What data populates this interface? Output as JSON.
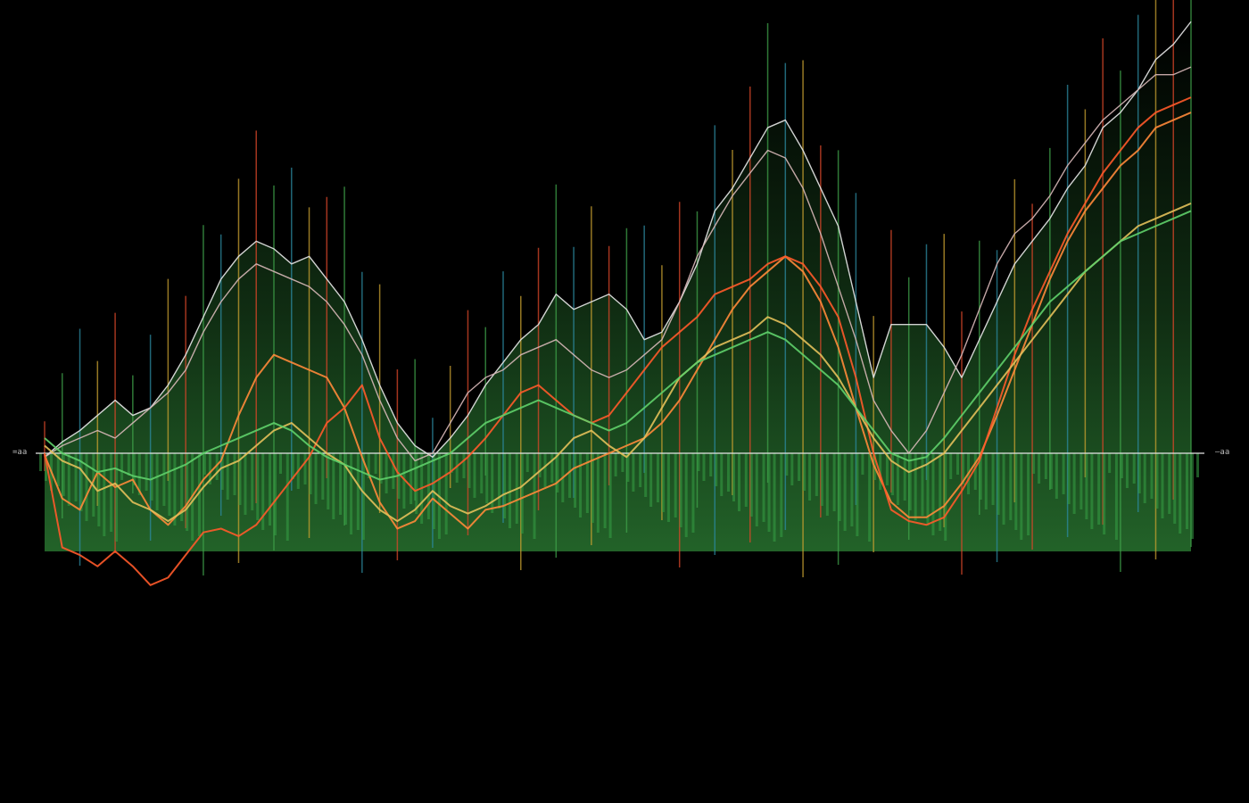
{
  "chart_data": {
    "type": "line",
    "grid": false,
    "legend": "none",
    "background": "#000000",
    "baseline_labels": {
      "left": "=aa",
      "right": "—aa"
    },
    "x": [
      0,
      1,
      2,
      3,
      4,
      5,
      6,
      7,
      8,
      9,
      10,
      11,
      12,
      13,
      14,
      15,
      16,
      17,
      18,
      19,
      20,
      21,
      22,
      23,
      24,
      25,
      26,
      27,
      28,
      29,
      30,
      31,
      32,
      33,
      34,
      35,
      36,
      37,
      38,
      39,
      40,
      41,
      42,
      43,
      44,
      45,
      46,
      47,
      48,
      49,
      50,
      51,
      52,
      53,
      54,
      55,
      56,
      57,
      58,
      59,
      60,
      61,
      62,
      63,
      64,
      65
    ],
    "ylim": [
      -100,
      115
    ],
    "series": [
      {
        "color": "#e8e8e8",
        "values": [
          -2,
          3,
          6,
          10,
          14,
          10,
          12,
          18,
          26,
          36,
          46,
          52,
          56,
          54,
          50,
          52,
          46,
          40,
          30,
          18,
          8,
          2,
          -2,
          4,
          10,
          18,
          24,
          30,
          34,
          42,
          38,
          40,
          42,
          38,
          30,
          32,
          40,
          50,
          64,
          70,
          78,
          86,
          88,
          80,
          70,
          60,
          40,
          20,
          34,
          34,
          34,
          28,
          20,
          30,
          40,
          50,
          56,
          62,
          70,
          76,
          86,
          90,
          96,
          104,
          108,
          114
        ]
      },
      {
        "color": "#d8b8b8",
        "values": [
          -2,
          2,
          4,
          6,
          4,
          8,
          12,
          16,
          22,
          32,
          40,
          46,
          50,
          48,
          46,
          44,
          40,
          34,
          26,
          14,
          4,
          -4,
          0,
          8,
          16,
          20,
          22,
          26,
          28,
          30,
          26,
          22,
          20,
          22,
          26,
          30,
          40,
          52,
          60,
          68,
          74,
          80,
          78,
          70,
          58,
          44,
          30,
          14,
          6,
          0,
          6,
          16,
          26,
          38,
          50,
          58,
          62,
          68,
          76,
          82,
          88,
          92,
          96,
          100,
          100,
          102
        ]
      },
      {
        "color": "#ff8a3a",
        "values": [
          -1,
          -24,
          -30,
          -10,
          -18,
          -14,
          -30,
          -38,
          -28,
          -14,
          -4,
          10,
          20,
          26,
          24,
          22,
          20,
          12,
          -2,
          -26,
          -40,
          -36,
          -24,
          -32,
          -40,
          -30,
          -28,
          -24,
          -20,
          -16,
          -8,
          -4,
          0,
          2,
          4,
          8,
          14,
          22,
          30,
          38,
          44,
          48,
          52,
          48,
          40,
          28,
          12,
          -6,
          -26,
          -34,
          -34,
          -28,
          -16,
          -2,
          10,
          22,
          34,
          46,
          56,
          64,
          70,
          76,
          80,
          86,
          88,
          90
        ]
      },
      {
        "color": "#ff5a2a",
        "values": [
          0,
          -50,
          -54,
          -60,
          -52,
          -60,
          -70,
          -66,
          -54,
          -42,
          -40,
          -44,
          -38,
          -26,
          -14,
          -2,
          8,
          12,
          18,
          4,
          -10,
          -20,
          -16,
          -10,
          -2,
          4,
          10,
          16,
          18,
          14,
          10,
          8,
          10,
          16,
          22,
          28,
          32,
          36,
          42,
          44,
          46,
          50,
          52,
          50,
          44,
          36,
          20,
          0,
          -30,
          -36,
          -38,
          -34,
          -20,
          -4,
          12,
          26,
          38,
          48,
          58,
          66,
          74,
          80,
          86,
          90,
          92,
          94
        ]
      },
      {
        "color": "#e3c05a",
        "values": [
          2,
          -4,
          -8,
          -20,
          -16,
          -26,
          -30,
          -36,
          -30,
          -18,
          -8,
          -4,
          2,
          6,
          8,
          4,
          0,
          -6,
          -20,
          -30,
          -36,
          -30,
          -20,
          -28,
          -32,
          -28,
          -22,
          -18,
          -10,
          -2,
          4,
          6,
          2,
          -2,
          4,
          12,
          20,
          24,
          28,
          30,
          32,
          36,
          34,
          30,
          26,
          20,
          12,
          4,
          -4,
          -10,
          -6,
          0,
          6,
          12,
          18,
          24,
          30,
          36,
          42,
          48,
          52,
          56,
          60,
          62,
          64,
          66
        ]
      },
      {
        "color": "#5fd06a",
        "values": [
          4,
          0,
          -4,
          -10,
          -8,
          -12,
          -14,
          -10,
          -6,
          0,
          2,
          4,
          6,
          8,
          6,
          2,
          -2,
          -6,
          -10,
          -14,
          -12,
          -8,
          -4,
          0,
          4,
          8,
          10,
          12,
          14,
          12,
          10,
          8,
          6,
          8,
          12,
          16,
          20,
          24,
          26,
          28,
          30,
          32,
          30,
          26,
          22,
          18,
          12,
          6,
          0,
          -4,
          -2,
          4,
          10,
          16,
          22,
          28,
          34,
          40,
          44,
          48,
          52,
          56,
          58,
          60,
          62,
          64
        ]
      }
    ]
  }
}
